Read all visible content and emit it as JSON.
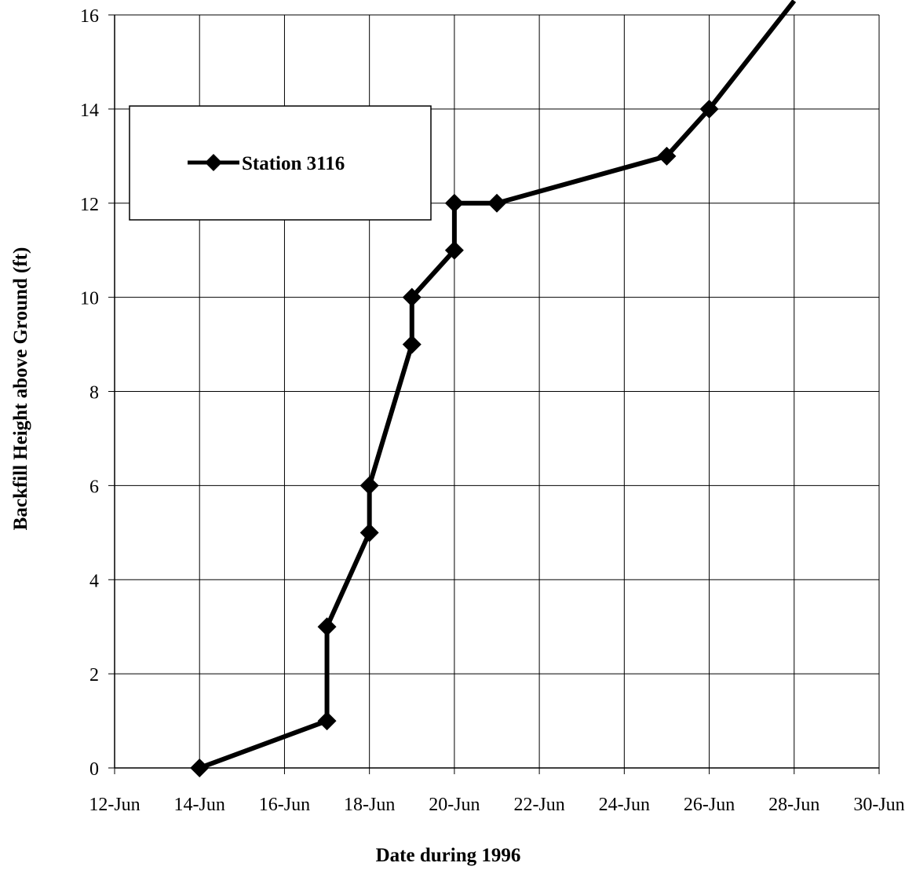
{
  "chart_data": {
    "type": "line",
    "title": "",
    "xlabel": "Date during 1996",
    "ylabel": "Backfill Height above Ground (ft)",
    "xlim": [
      "12-Jun",
      "30-Jun"
    ],
    "ylim": [
      0,
      16
    ],
    "x_ticks": [
      "12-Jun",
      "14-Jun",
      "16-Jun",
      "18-Jun",
      "20-Jun",
      "22-Jun",
      "24-Jun",
      "26-Jun",
      "28-Jun",
      "30-Jun"
    ],
    "y_ticks": [
      "0",
      "2",
      "4",
      "6",
      "8",
      "10",
      "12",
      "14",
      "16"
    ],
    "grid": true,
    "legend_position": "top-left",
    "series": [
      {
        "name": "Station 3116",
        "marker": "diamond",
        "color": "#000000",
        "points": [
          {
            "x": "14-Jun",
            "y": 0
          },
          {
            "x": "17-Jun",
            "y": 1
          },
          {
            "x": "17-Jun",
            "y": 3
          },
          {
            "x": "18-Jun",
            "y": 5
          },
          {
            "x": "18-Jun",
            "y": 6
          },
          {
            "x": "19-Jun",
            "y": 9
          },
          {
            "x": "19-Jun",
            "y": 10
          },
          {
            "x": "20-Jun",
            "y": 11
          },
          {
            "x": "20-Jun",
            "y": 12
          },
          {
            "x": "21-Jun",
            "y": 12
          },
          {
            "x": "25-Jun",
            "y": 13
          },
          {
            "x": "26-Jun",
            "y": 14
          },
          {
            "x": "28-Jun",
            "y": 16.3
          }
        ]
      }
    ]
  }
}
